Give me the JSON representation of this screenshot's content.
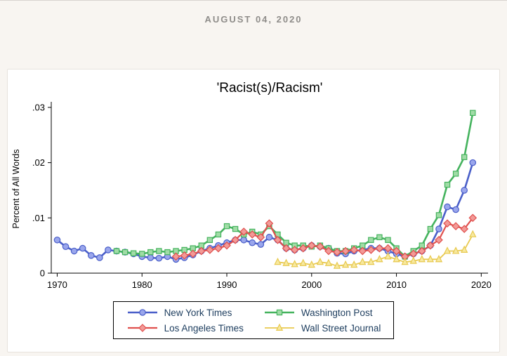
{
  "page": {
    "date_heading": "AUGUST 04, 2020"
  },
  "chart_data": {
    "type": "line",
    "title": "'Racist(s)/Racism'",
    "ylabel": "Percent of All Words",
    "xlabel": "",
    "grid": false,
    "legend_position": "bottom",
    "legend_rows": 2,
    "xlim": [
      1969.3,
      2020.8
    ],
    "ylim": [
      0,
      0.0305
    ],
    "x_ticks": [
      1970,
      1980,
      1990,
      2000,
      2010,
      2020
    ],
    "y_ticks": [
      0,
      0.01,
      0.02,
      0.03
    ],
    "y_tick_labels": [
      "0",
      ".01",
      ".02",
      ".03"
    ],
    "years": [
      1970,
      1971,
      1972,
      1973,
      1974,
      1975,
      1976,
      1977,
      1978,
      1979,
      1980,
      1981,
      1982,
      1983,
      1984,
      1985,
      1986,
      1987,
      1988,
      1989,
      1990,
      1991,
      1992,
      1993,
      1994,
      1995,
      1996,
      1997,
      1998,
      1999,
      2000,
      2001,
      2002,
      2003,
      2004,
      2005,
      2006,
      2007,
      2008,
      2009,
      2010,
      2011,
      2012,
      2013,
      2014,
      2015,
      2016,
      2017,
      2018,
      2019
    ],
    "series": [
      {
        "id": "nyt",
        "name": "New York Times",
        "marker": "circle",
        "color": "#4a5fc9",
        "fill": "#9aa6ec",
        "line_width": 2.6,
        "values": [
          0.006,
          0.0048,
          0.004,
          0.0045,
          0.0032,
          0.0028,
          0.0042,
          0.004,
          0.0038,
          0.0035,
          0.003,
          0.0028,
          0.0027,
          0.003,
          0.0025,
          0.0028,
          0.0033,
          0.004,
          0.0045,
          0.005,
          0.0055,
          0.006,
          0.006,
          0.0055,
          0.0052,
          0.0065,
          0.006,
          0.0045,
          0.0042,
          0.0045,
          0.005,
          0.0048,
          0.0045,
          0.0036,
          0.0035,
          0.004,
          0.0042,
          0.0045,
          0.0045,
          0.004,
          0.0035,
          0.003,
          0.0035,
          0.004,
          0.005,
          0.008,
          0.012,
          0.0115,
          0.015,
          0.02
        ]
      },
      {
        "id": "wapo",
        "name": "Washington Post",
        "marker": "square",
        "color": "#45b35e",
        "fill": "#a0dca6",
        "line_width": 2.6,
        "values": [
          null,
          null,
          null,
          null,
          null,
          null,
          null,
          0.004,
          0.0038,
          0.0036,
          0.0035,
          0.0038,
          0.004,
          0.0038,
          0.004,
          0.0042,
          0.0045,
          0.005,
          0.006,
          0.007,
          0.0085,
          0.008,
          0.007,
          0.0075,
          0.007,
          0.0085,
          0.007,
          0.0055,
          0.005,
          0.005,
          0.0048,
          0.005,
          0.0045,
          0.004,
          0.004,
          0.0045,
          0.005,
          0.006,
          0.0065,
          0.006,
          0.0045,
          0.003,
          0.004,
          0.005,
          0.008,
          0.0105,
          0.016,
          0.018,
          0.021,
          0.029
        ]
      },
      {
        "id": "lat",
        "name": "Los Angeles Times",
        "marker": "diamond",
        "color": "#e0504e",
        "fill": "#f29a97",
        "line_width": 2.2,
        "values": [
          null,
          null,
          null,
          null,
          null,
          null,
          null,
          null,
          null,
          null,
          null,
          null,
          null,
          null,
          0.003,
          0.0032,
          0.0035,
          0.004,
          0.0042,
          0.0045,
          0.005,
          0.006,
          0.0075,
          0.007,
          0.0065,
          0.009,
          0.006,
          0.0045,
          0.0042,
          0.0045,
          0.005,
          0.0048,
          0.004,
          0.0038,
          0.004,
          0.0042,
          0.004,
          0.0042,
          0.0045,
          0.0045,
          0.004,
          0.003,
          0.0035,
          0.004,
          0.005,
          0.006,
          0.009,
          0.0085,
          0.008,
          0.01
        ]
      },
      {
        "id": "wsj",
        "name": "Wall Street Journal",
        "marker": "triangle",
        "color": "#e8c94f",
        "fill": "#f7e9a0",
        "line_width": 1.8,
        "values": [
          null,
          null,
          null,
          null,
          null,
          null,
          null,
          null,
          null,
          null,
          null,
          null,
          null,
          null,
          null,
          null,
          null,
          null,
          null,
          null,
          null,
          null,
          null,
          null,
          null,
          null,
          0.002,
          0.0018,
          0.0016,
          0.0018,
          0.0015,
          0.002,
          0.0018,
          0.0013,
          0.0015,
          0.0015,
          0.002,
          0.002,
          0.0025,
          0.003,
          0.0025,
          0.002,
          0.0022,
          0.0025,
          0.0025,
          0.0025,
          0.004,
          0.004,
          0.0042,
          0.007
        ]
      }
    ]
  }
}
